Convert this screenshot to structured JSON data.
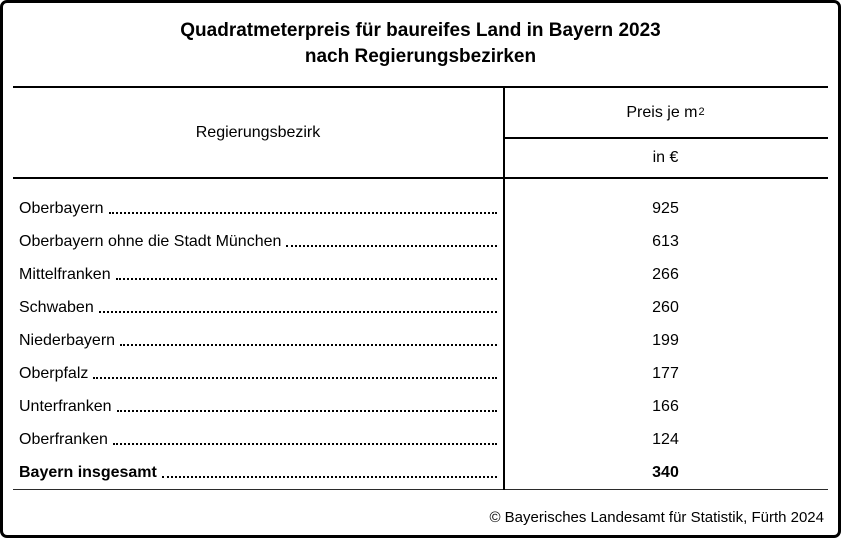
{
  "page": {
    "title_line1": "Quadratmeterpreis für baureifes Land in Bayern 2023",
    "title_line2": "nach Regierungsbezirken"
  },
  "table": {
    "header": {
      "col_region": "Regierungsbezirk",
      "col_price_base": "Preis je m",
      "col_price_sup": "2",
      "col_price_unit": "in €"
    },
    "rows": [
      {
        "label": "Oberbayern",
        "value": "925",
        "bold": false
      },
      {
        "label": "Oberbayern ohne die Stadt München",
        "value": "613",
        "bold": false
      },
      {
        "label": "Mittelfranken",
        "value": "266",
        "bold": false
      },
      {
        "label": "Schwaben",
        "value": "260",
        "bold": false
      },
      {
        "label": "Niederbayern",
        "value": "199",
        "bold": false
      },
      {
        "label": "Oberpfalz",
        "value": "177",
        "bold": false
      },
      {
        "label": "Unterfranken",
        "value": "166",
        "bold": false
      },
      {
        "label": "Oberfranken",
        "value": "124",
        "bold": false
      },
      {
        "label": "Bayern insgesamt",
        "value": "340",
        "bold": true
      }
    ]
  },
  "footer": {
    "copyright": "© Bayerisches Landesamt für Statistik, Fürth 2024"
  },
  "colors": {
    "background": "#ffffff",
    "border": "#000000",
    "text": "#000000"
  },
  "chart_data": {
    "type": "table",
    "title": "Quadratmeterpreis für baureifes Land in Bayern 2023 nach Regierungsbezirken",
    "columns": [
      "Regierungsbezirk",
      "Preis je m² in €"
    ],
    "categories": [
      "Oberbayern",
      "Oberbayern ohne die Stadt München",
      "Mittelfranken",
      "Schwaben",
      "Niederbayern",
      "Oberpfalz",
      "Unterfranken",
      "Oberfranken",
      "Bayern insgesamt"
    ],
    "values": [
      925,
      613,
      266,
      260,
      199,
      177,
      166,
      124,
      340
    ],
    "source": "© Bayerisches Landesamt für Statistik, Fürth 2024"
  }
}
